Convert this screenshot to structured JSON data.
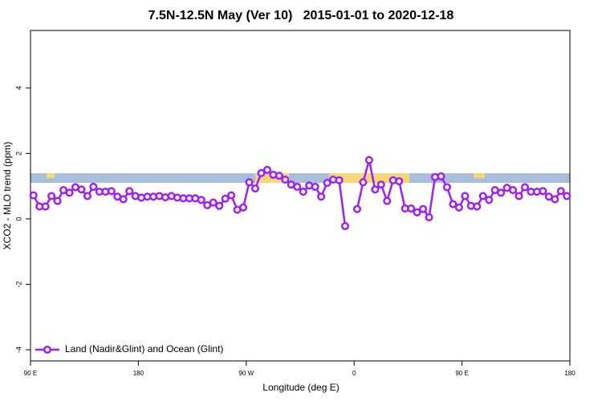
{
  "chart_data": {
    "type": "line",
    "title": "7.5N-12.5N May (Ver 10)   2015-01-01 to 2020-12-18",
    "xlabel": "Longitude (deg E)",
    "ylabel": "XCO2 - MLO trend (ppm)",
    "x": [
      92.5,
      97.5,
      102.5,
      107.5,
      112.5,
      117.5,
      122.5,
      127.5,
      132.5,
      137.5,
      142.5,
      147.5,
      152.5,
      157.5,
      162.5,
      167.5,
      172.5,
      177.5,
      182.5,
      187.5,
      192.5,
      197.5,
      202.5,
      207.5,
      212.5,
      217.5,
      222.5,
      227.5,
      232.5,
      237.5,
      242.5,
      247.5,
      252.5,
      257.5,
      262.5,
      267.5,
      272.5,
      277.5,
      282.5,
      287.5,
      292.5,
      297.5,
      302.5,
      307.5,
      312.5,
      317.5,
      322.5,
      327.5,
      332.5,
      337.5,
      342.5,
      347.5,
      352.5,
      357.5,
      362.5,
      367.5,
      372.5,
      377.5,
      382.5,
      387.5,
      392.5,
      397.5,
      402.5,
      407.5,
      412.5,
      417.5,
      422.5,
      427.5,
      432.5,
      437.5,
      442.5,
      447.5,
      452.5,
      457.5,
      462.5,
      467.5,
      472.5,
      477.5,
      482.5,
      487.5,
      492.5,
      497.5,
      502.5,
      507.5,
      512.5,
      517.5,
      522.5,
      527.5,
      532.5,
      537.5
    ],
    "series": [
      {
        "name": "Land (Nadir&Glint) and Ocean (Glint)",
        "color": "#a020f0",
        "values": [
          0.72,
          0.38,
          0.38,
          0.7,
          0.55,
          0.88,
          0.8,
          0.97,
          0.9,
          0.7,
          0.98,
          0.83,
          0.83,
          0.85,
          0.68,
          0.6,
          0.85,
          0.7,
          0.65,
          0.68,
          0.68,
          0.7,
          0.66,
          0.7,
          0.65,
          0.63,
          0.63,
          0.63,
          0.58,
          0.42,
          0.5,
          0.4,
          0.62,
          0.72,
          0.28,
          0.35,
          1.12,
          0.93,
          1.4,
          1.5,
          1.35,
          1.32,
          1.2,
          1.05,
          0.98,
          0.83,
          1.02,
          0.98,
          0.68,
          1.1,
          1.2,
          1.18,
          -0.22,
          null,
          0.3,
          1.12,
          1.8,
          0.9,
          1.05,
          0.55,
          1.18,
          1.15,
          0.32,
          0.32,
          0.2,
          0.3,
          0.05,
          1.28,
          1.3,
          0.97,
          0.45,
          0.35,
          0.7,
          0.4,
          0.38,
          0.7,
          0.58,
          0.88,
          0.8,
          0.95,
          0.88,
          0.7,
          0.97,
          0.83,
          0.83,
          0.85,
          0.68,
          0.6,
          0.85,
          0.7
        ]
      }
    ],
    "xlim": [
      90,
      540
    ],
    "xticks": [
      {
        "value": 90,
        "label": "90 E"
      },
      180,
      {
        "value": 270,
        "label": "90 W"
      },
      {
        "value": 360,
        "label": "0"
      },
      {
        "value": 450,
        "label": "90 E"
      },
      {
        "value": 540,
        "label": "180"
      }
    ],
    "ylim": [
      -4.34,
      5.76
    ],
    "yticks": [
      -4,
      -2,
      0,
      2,
      4
    ],
    "legend": "bottom-left"
  }
}
